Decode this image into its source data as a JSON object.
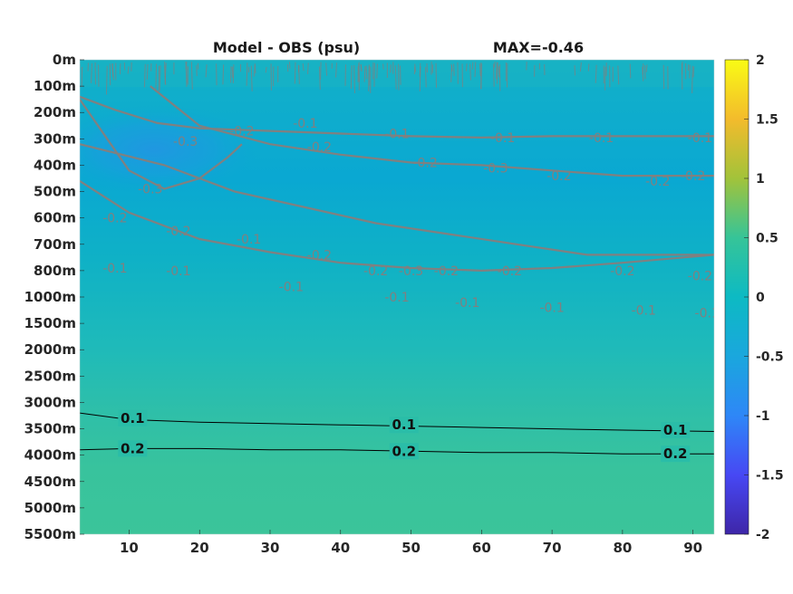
{
  "chart_data": {
    "type": "heatmap",
    "title": "Model - OBS (psu)",
    "max_label": "MAX=-0.46",
    "x_ticks": [
      10,
      20,
      30,
      40,
      50,
      60,
      70,
      80,
      90
    ],
    "xlim": [
      3,
      93
    ],
    "y_ticks": [
      "0m",
      "100m",
      "200m",
      "300m",
      "400m",
      "500m",
      "600m",
      "700m",
      "800m",
      "1000m",
      "1500m",
      "2000m",
      "2500m",
      "3000m",
      "3500m",
      "4000m",
      "4500m",
      "5000m",
      "5500m"
    ],
    "colorbar": {
      "ticks": [
        "2",
        "1.5",
        "1",
        "0.5",
        "0",
        "-0.5",
        "-1",
        "-1.5",
        "-2"
      ],
      "range": [
        -2,
        2
      ],
      "colormap": "parula"
    },
    "colors": {
      "field_deep": "#3ac29a",
      "field_mid": "#17b4c1",
      "field_upper": "#0fa8d1",
      "field_min": "#1f9be0",
      "contour_negative": "#808080",
      "contour_positive": "#000000"
    },
    "contours": [
      {
        "level": -0.1,
        "label": "-0.1",
        "x": [
          3,
          10,
          20,
          30,
          40,
          50,
          60,
          70,
          80,
          93
        ],
        "y": [
          4.6,
          5.8,
          6.8,
          7.3,
          7.7,
          7.9,
          8.0,
          7.9,
          7.7,
          7.4
        ]
      },
      {
        "level": -0.2,
        "label": "-0.2",
        "x": [
          3,
          15,
          25,
          35,
          45,
          55,
          65,
          75,
          93
        ],
        "y": [
          3.2,
          4.0,
          5.0,
          5.6,
          6.2,
          6.6,
          7.0,
          7.4,
          7.4
        ]
      },
      {
        "level": -0.2,
        "label": "-0.2",
        "x": [
          13,
          20,
          30,
          40,
          50,
          60,
          70,
          80,
          93
        ],
        "y": [
          1.0,
          2.5,
          3.2,
          3.6,
          3.9,
          4.0,
          4.2,
          4.4,
          4.4
        ]
      },
      {
        "level": -0.3,
        "label": "-0.3",
        "x": [
          3,
          10,
          15,
          20,
          24,
          26
        ],
        "y": [
          1.5,
          4.2,
          4.9,
          4.5,
          3.7,
          3.2
        ]
      },
      {
        "level": -0.1,
        "label": "-0.1",
        "x": [
          3,
          8,
          14,
          20,
          30,
          40,
          50,
          60,
          70,
          80,
          93
        ],
        "y": [
          1.4,
          1.9,
          2.4,
          2.6,
          2.7,
          2.8,
          2.9,
          2.95,
          2.9,
          2.9,
          2.9
        ]
      }
    ],
    "contour_labels": [
      {
        "text": "-0.1",
        "x": 96,
        "y": 1.1
      },
      {
        "text": "-0.1",
        "x": 35,
        "y": 2.4
      },
      {
        "text": "-0.1",
        "x": 48,
        "y": 2.8
      },
      {
        "text": "-0.1",
        "x": 63,
        "y": 2.95
      },
      {
        "text": "-0.1",
        "x": 77,
        "y": 2.95
      },
      {
        "text": "-0.1",
        "x": 91,
        "y": 2.95
      },
      {
        "text": "-0.2",
        "x": 26,
        "y": 2.7
      },
      {
        "text": "-0.2",
        "x": 37,
        "y": 3.3
      },
      {
        "text": "-0.2",
        "x": 52,
        "y": 3.9
      },
      {
        "text": "-0.3",
        "x": 62,
        "y": 4.1
      },
      {
        "text": "-0.2",
        "x": 71,
        "y": 4.4
      },
      {
        "text": "-0.2",
        "x": 85,
        "y": 4.6
      },
      {
        "text": "-0.2",
        "x": 90,
        "y": 4.4
      },
      {
        "text": "-0.3",
        "x": 18,
        "y": 3.1
      },
      {
        "text": "-0.3",
        "x": 13,
        "y": 4.9
      },
      {
        "text": "-0.2",
        "x": 8,
        "y": 6.0
      },
      {
        "text": "-0.2",
        "x": 17,
        "y": 6.5
      },
      {
        "text": "-0.1",
        "x": 27,
        "y": 6.8
      },
      {
        "text": "-0.2",
        "x": 37,
        "y": 7.4
      },
      {
        "text": "-0.2",
        "x": 45,
        "y": 8.0
      },
      {
        "text": "-0.3",
        "x": 50,
        "y": 8.0
      },
      {
        "text": "-0.2",
        "x": 55,
        "y": 8.0
      },
      {
        "text": "-0.2",
        "x": 64,
        "y": 8.0
      },
      {
        "text": "-0.2",
        "x": 80,
        "y": 8.0
      },
      {
        "text": "-0.2",
        "x": 91,
        "y": 8.2
      },
      {
        "text": "-0.1",
        "x": 8,
        "y": 7.9
      },
      {
        "text": "-0.1",
        "x": 17,
        "y": 8.0
      },
      {
        "text": "-0.1",
        "x": 33,
        "y": 8.6
      },
      {
        "text": "-0.1",
        "x": 48,
        "y": 9.0
      },
      {
        "text": "-0.1",
        "x": 58,
        "y": 9.2
      },
      {
        "text": "-0.1",
        "x": 70,
        "y": 9.4
      },
      {
        "text": "-0.1",
        "x": 83,
        "y": 9.5
      },
      {
        "text": "-0.1",
        "x": 92,
        "y": 9.6
      }
    ],
    "positive_contours": [
      {
        "level": 0.1,
        "label": "0.1",
        "x": [
          3,
          10,
          20,
          30,
          40,
          50,
          60,
          70,
          80,
          93
        ],
        "y": [
          13.4,
          13.65,
          13.75,
          13.8,
          13.85,
          13.9,
          13.95,
          14.0,
          14.05,
          14.1
        ]
      },
      {
        "level": 0.2,
        "label": "0.2",
        "x": [
          3,
          10,
          20,
          30,
          40,
          50,
          60,
          70,
          80,
          93
        ],
        "y": [
          14.8,
          14.75,
          14.75,
          14.8,
          14.8,
          14.85,
          14.9,
          14.9,
          14.95,
          14.95
        ]
      }
    ],
    "positive_labels": [
      {
        "text": "0.1",
        "x": 10.5,
        "y": 13.6
      },
      {
        "text": "0.1",
        "x": 49,
        "y": 13.85
      },
      {
        "text": "0.1",
        "x": 87.5,
        "y": 14.05
      },
      {
        "text": "0.2",
        "x": 10.5,
        "y": 14.75
      },
      {
        "text": "0.2",
        "x": 49,
        "y": 14.85
      },
      {
        "text": "0.2",
        "x": 87.5,
        "y": 14.95
      }
    ]
  }
}
